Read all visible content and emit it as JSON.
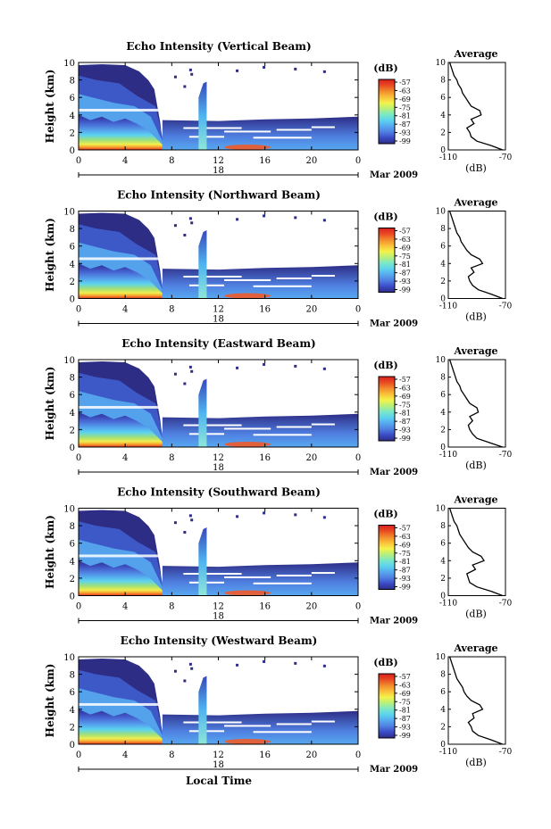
{
  "figure": {
    "xlabel": "Local Time",
    "date_label": "Mar 2009",
    "day_label": "18"
  },
  "colorbar": {
    "unit_label": "(dB)",
    "ticks": [
      "-57",
      "-63",
      "-69",
      "-75",
      "-81",
      "-87",
      "-93",
      "-99"
    ],
    "colors": [
      "#2d2d86",
      "#3a4bc6",
      "#4f7fe0",
      "#57a8f0",
      "#5cd3ee",
      "#7ce8c6",
      "#b7f07a",
      "#f6f24a",
      "#f9c03a",
      "#f18a2c",
      "#ea4a22",
      "#d81e1e"
    ]
  },
  "profile": {
    "title": "Average",
    "xlabel": "(dB)",
    "xticks": [
      "-110",
      "-70"
    ],
    "yticks": [
      "0",
      "2",
      "4",
      "6",
      "8",
      "10"
    ]
  },
  "chart_data": [
    {
      "type": "heatmap",
      "title": "Echo Intensity (Vertical Beam)",
      "ylabel": "Height (km)",
      "xticks": [
        "0",
        "4",
        "8",
        "12",
        "16",
        "20",
        "0"
      ],
      "yticks": [
        "0",
        "2",
        "4",
        "6",
        "8",
        "10"
      ],
      "xlim": [
        0,
        24
      ],
      "ylim": [
        0,
        10
      ],
      "clim": [
        -99,
        -57
      ],
      "average_profile": {
        "height_km": [
          0,
          0.5,
          1,
          1.5,
          2,
          2.5,
          3,
          3.5,
          4,
          4.5,
          5,
          5.5,
          6,
          6.5,
          7,
          7.5,
          8,
          8.5,
          9,
          9.5,
          10
        ],
        "db": [
          -72,
          -80,
          -90,
          -94,
          -95,
          -97,
          -92,
          -94,
          -87,
          -88,
          -94,
          -96,
          -98,
          -100,
          -101,
          -103,
          -104,
          -106,
          -107,
          -108,
          -109
        ]
      }
    },
    {
      "type": "heatmap",
      "title": "Echo Intensity (Northward Beam)",
      "ylabel": "Height (km)",
      "xticks": [
        "0",
        "4",
        "8",
        "12",
        "16",
        "20",
        "0"
      ],
      "yticks": [
        "0",
        "2",
        "4",
        "6",
        "8",
        "10"
      ],
      "xlim": [
        0,
        24
      ],
      "ylim": [
        0,
        10
      ],
      "clim": [
        -99,
        -57
      ],
      "average_profile": {
        "height_km": [
          0,
          0.5,
          1,
          1.5,
          2,
          2.5,
          3,
          3.5,
          4,
          4.5,
          5,
          5.5,
          6,
          6.5,
          7,
          7.5,
          8,
          8.5,
          9,
          9.5,
          10
        ],
        "db": [
          -72,
          -80,
          -89,
          -93,
          -95,
          -96,
          -92,
          -94,
          -86,
          -88,
          -94,
          -97,
          -99,
          -101,
          -102,
          -104,
          -105,
          -106,
          -107,
          -108,
          -109
        ]
      }
    },
    {
      "type": "heatmap",
      "title": "Echo Intensity (Eastward Beam)",
      "ylabel": "Height (km)",
      "xticks": [
        "0",
        "4",
        "8",
        "12",
        "16",
        "20",
        "0"
      ],
      "yticks": [
        "0",
        "2",
        "4",
        "6",
        "8",
        "10"
      ],
      "xlim": [
        0,
        24
      ],
      "ylim": [
        0,
        10
      ],
      "clim": [
        -99,
        -57
      ],
      "average_profile": {
        "height_km": [
          0,
          0.5,
          1,
          1.5,
          2,
          2.5,
          3,
          3.5,
          4,
          4.5,
          5,
          5.5,
          6,
          6.5,
          7,
          7.5,
          8,
          8.5,
          9,
          9.5,
          10
        ],
        "db": [
          -72,
          -81,
          -90,
          -93,
          -95,
          -96,
          -93,
          -95,
          -89,
          -90,
          -95,
          -97,
          -99,
          -101,
          -102,
          -104,
          -105,
          -106,
          -107,
          -108,
          -109
        ]
      }
    },
    {
      "type": "heatmap",
      "title": "Echo Intensity (Southward Beam)",
      "ylabel": "Height (km)",
      "xticks": [
        "0",
        "4",
        "8",
        "12",
        "16",
        "20",
        "0"
      ],
      "yticks": [
        "0",
        "2",
        "4",
        "6",
        "8",
        "10"
      ],
      "xlim": [
        0,
        24
      ],
      "ylim": [
        0,
        10
      ],
      "clim": [
        -99,
        -57
      ],
      "average_profile": {
        "height_km": [
          0,
          0.5,
          1,
          1.5,
          2,
          2.5,
          3,
          3.5,
          4,
          4.5,
          5,
          5.5,
          6,
          6.5,
          7,
          7.5,
          8,
          8.5,
          9,
          9.5,
          10
        ],
        "db": [
          -72,
          -80,
          -90,
          -95,
          -96,
          -97,
          -91,
          -93,
          -85,
          -87,
          -93,
          -96,
          -98,
          -100,
          -102,
          -103,
          -104,
          -106,
          -107,
          -108,
          -109
        ]
      }
    },
    {
      "type": "heatmap",
      "title": "Echo Intensity (Westward Beam)",
      "ylabel": "Height (km)",
      "xticks": [
        "0",
        "4",
        "8",
        "12",
        "16",
        "20",
        "0"
      ],
      "yticks": [
        "0",
        "2",
        "4",
        "6",
        "8",
        "10"
      ],
      "xlim": [
        0,
        24
      ],
      "ylim": [
        0,
        10
      ],
      "clim": [
        -99,
        -57
      ],
      "average_profile": {
        "height_km": [
          0,
          0.5,
          1,
          1.5,
          2,
          2.5,
          3,
          3.5,
          4,
          4.5,
          5,
          5.5,
          6,
          6.5,
          7,
          7.5,
          8,
          8.5,
          9,
          9.5,
          10
        ],
        "db": [
          -72,
          -80,
          -89,
          -93,
          -94,
          -96,
          -92,
          -93,
          -86,
          -88,
          -94,
          -97,
          -99,
          -100,
          -102,
          -104,
          -105,
          -106,
          -107,
          -108,
          -109
        ]
      }
    }
  ]
}
